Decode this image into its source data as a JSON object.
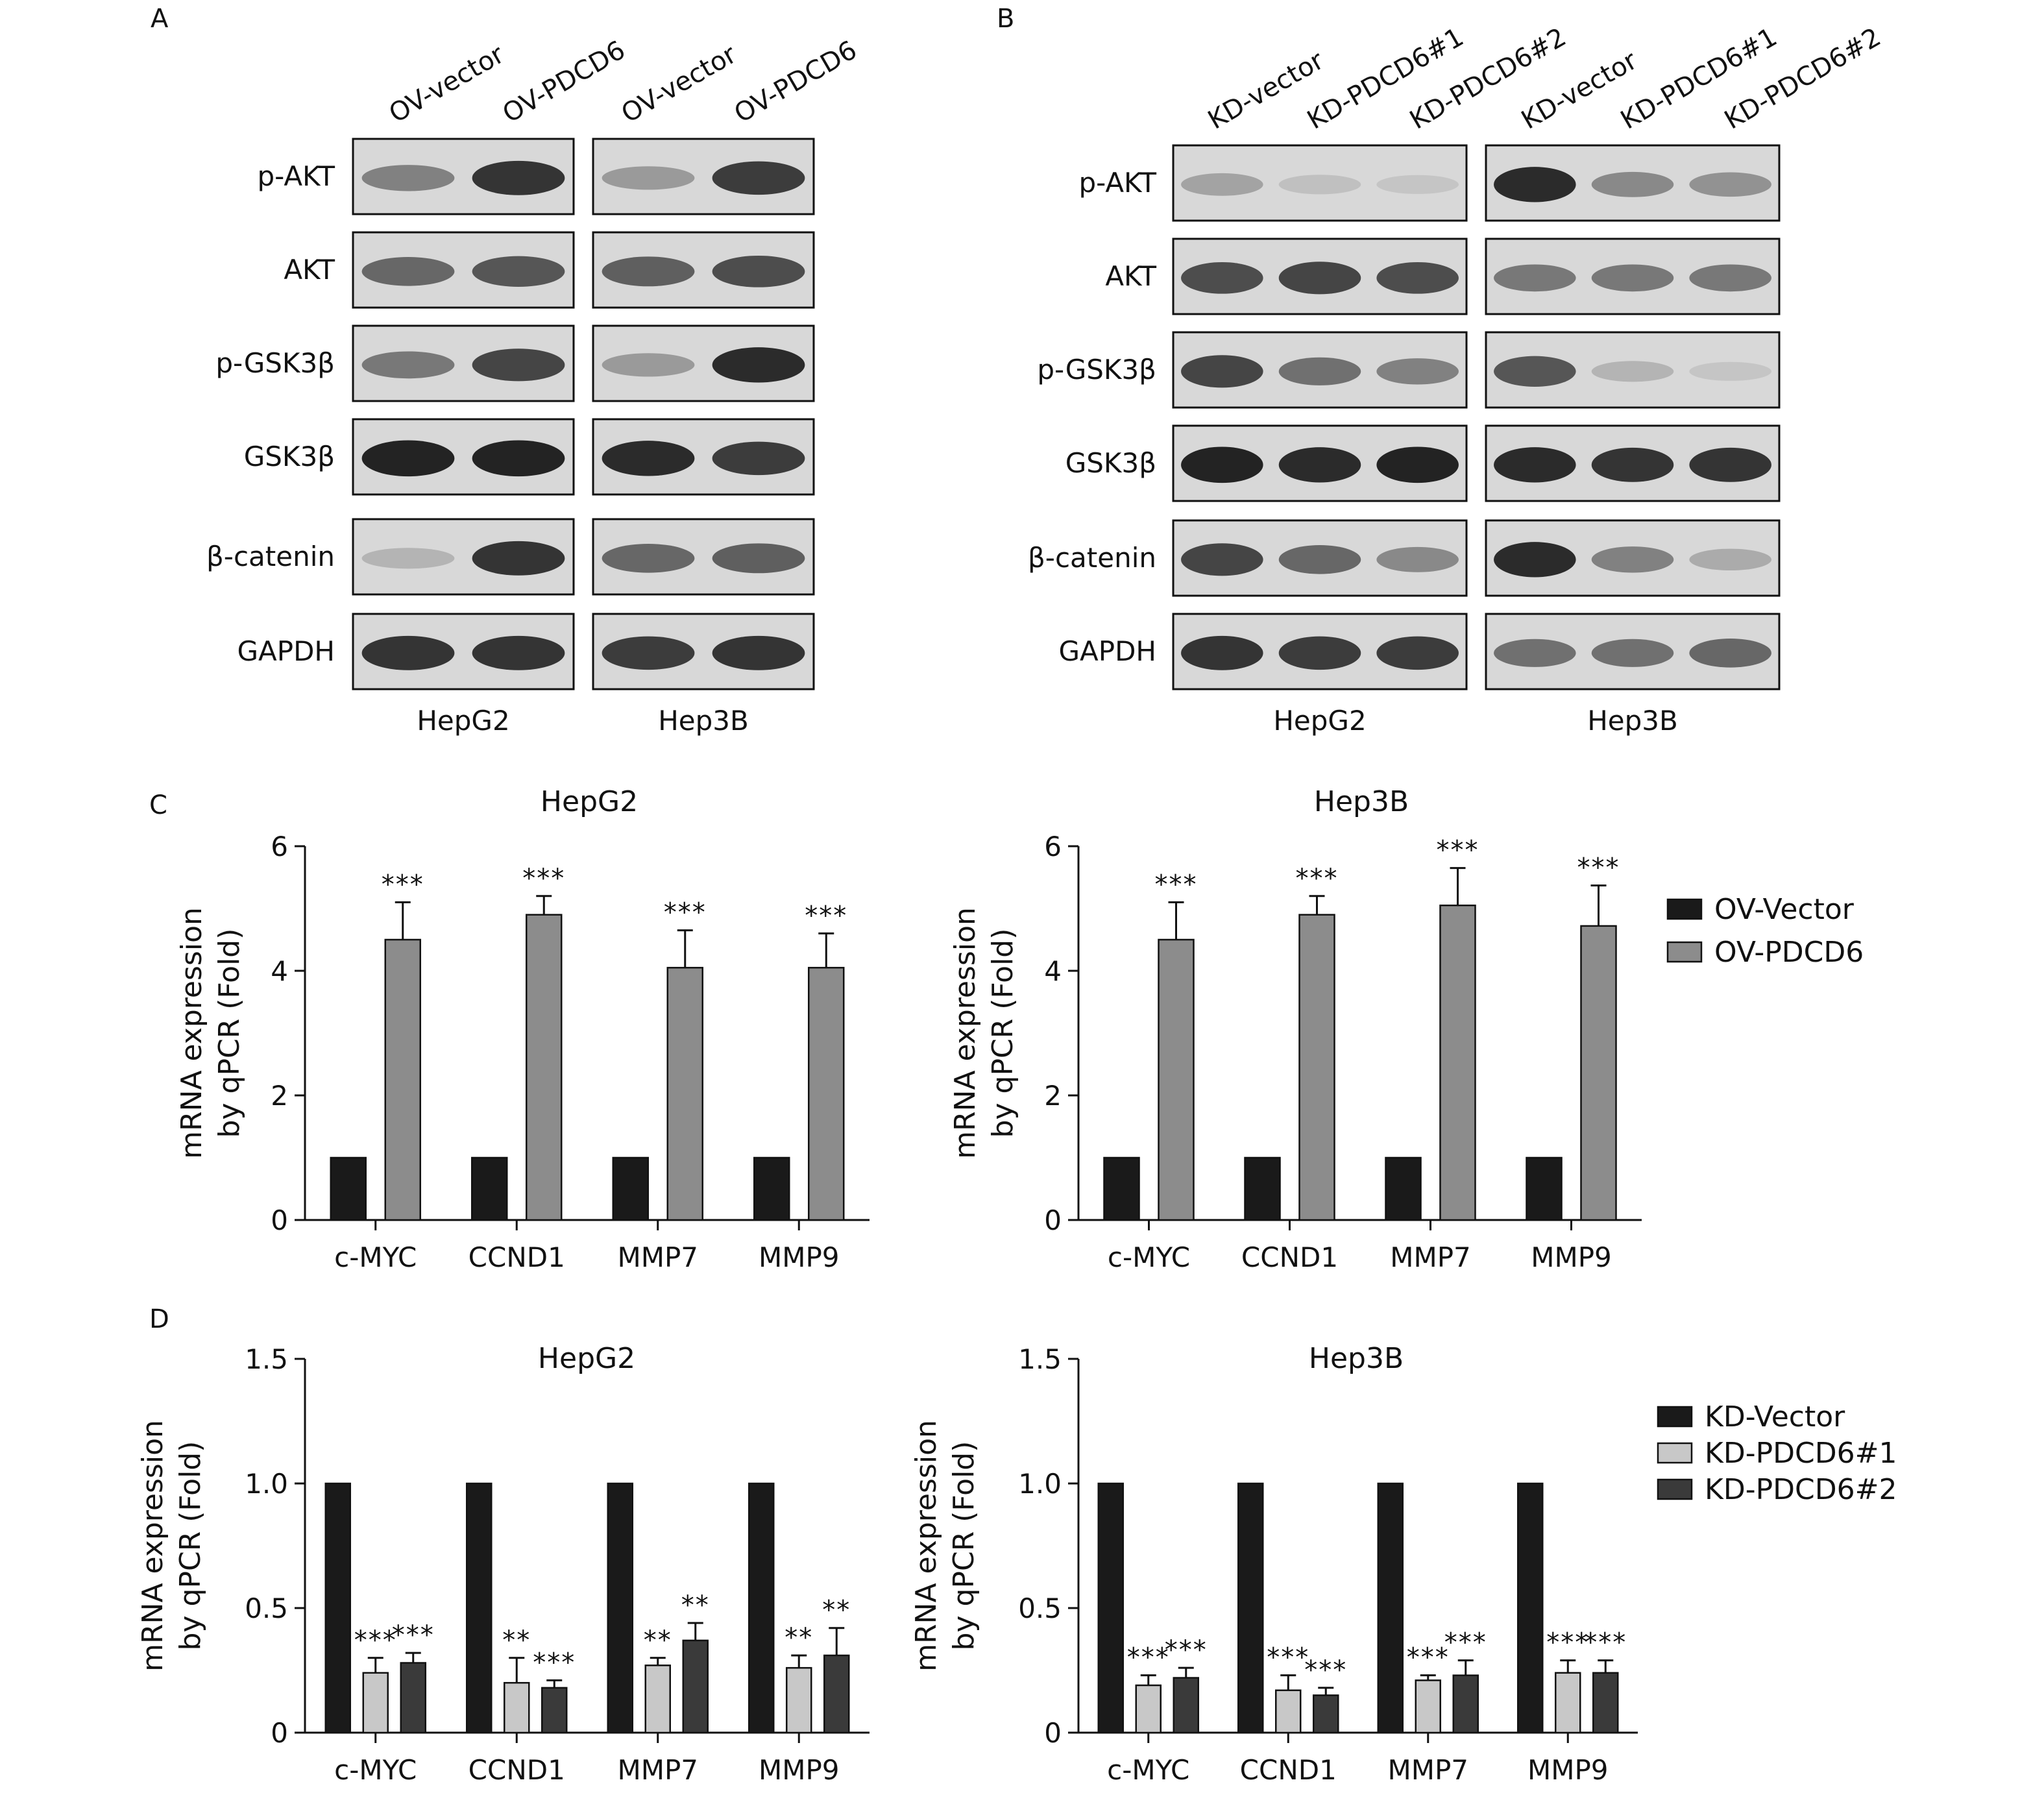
{
  "panels": {
    "a": "A",
    "b": "B",
    "c": "C",
    "d": "D"
  },
  "blot_a": {
    "lanes": [
      "OV-vector",
      "OV-PDCD6",
      "OV-vector",
      "OV-PDCD6"
    ],
    "proteins": [
      "p-AKT",
      "AKT",
      "p-GSK3β",
      "GSK3β",
      "β-catenin",
      "GAPDH"
    ],
    "cell_lines": [
      "HepG2",
      "Hep3B"
    ],
    "intensity": {
      "HepG2": [
        [
          0.45,
          0.9
        ],
        [
          0.6,
          0.7
        ],
        [
          0.5,
          0.8
        ],
        [
          1.0,
          1.0
        ],
        [
          0.15,
          0.9
        ],
        [
          0.9,
          0.9
        ]
      ],
      "Hep3B": [
        [
          0.3,
          0.85
        ],
        [
          0.65,
          0.75
        ],
        [
          0.3,
          0.95
        ],
        [
          0.95,
          0.85
        ],
        [
          0.6,
          0.65
        ],
        [
          0.85,
          0.9
        ]
      ]
    }
  },
  "blot_b": {
    "lanes": [
      "KD-vector",
      "KD-PDCD6#1",
      "KD-PDCD6#2",
      "KD-vector",
      "KD-PDCD6#1",
      "KD-PDCD6#2"
    ],
    "proteins": [
      "p-AKT",
      "AKT",
      "p-GSK3β",
      "GSK3β",
      "β-catenin",
      "GAPDH"
    ],
    "cell_lines": [
      "HepG2",
      "Hep3B"
    ],
    "intensity": {
      "HepG2": [
        [
          0.25,
          0.08,
          0.05
        ],
        [
          0.75,
          0.8,
          0.75
        ],
        [
          0.8,
          0.55,
          0.45
        ],
        [
          1.0,
          0.95,
          1.0
        ],
        [
          0.8,
          0.6,
          0.4
        ],
        [
          0.9,
          0.85,
          0.85
        ]
      ],
      "Hep3B": [
        [
          0.95,
          0.4,
          0.35
        ],
        [
          0.5,
          0.5,
          0.5
        ],
        [
          0.7,
          0.15,
          0.05
        ],
        [
          0.95,
          0.9,
          0.9
        ],
        [
          0.95,
          0.45,
          0.2
        ],
        [
          0.55,
          0.55,
          0.6
        ]
      ]
    }
  },
  "colors": {
    "dark_bar": "#1a1a1a",
    "gray_bar": "#8c8c8c",
    "light_bar": "#c8c8c8",
    "mid_dark_bar": "#3a3a3a"
  },
  "chart_data": [
    {
      "type": "bar",
      "panel": "C",
      "title": "HepG2",
      "ylabel": [
        "mRNA expression",
        "by qPCR (Fold)"
      ],
      "categories": [
        "c-MYC",
        "CCND1",
        "MMP7",
        "MMP9"
      ],
      "ylim": [
        0,
        6
      ],
      "yticks": [
        "0",
        "2",
        "4",
        "6"
      ],
      "series": [
        {
          "name": "OV-Vector",
          "values": [
            1.0,
            1.0,
            1.0,
            1.0
          ],
          "errors": [
            0,
            0,
            0,
            0
          ],
          "sig": [
            "",
            "",
            "",
            ""
          ]
        },
        {
          "name": "OV-PDCD6",
          "values": [
            4.5,
            4.9,
            4.05,
            4.05
          ],
          "errors": [
            0.6,
            0.3,
            0.6,
            0.55
          ],
          "sig": [
            "***",
            "***",
            "***",
            "***"
          ]
        }
      ]
    },
    {
      "type": "bar",
      "panel": "C",
      "title": "Hep3B",
      "ylabel": [
        "mRNA expression",
        "by qPCR (Fold)"
      ],
      "categories": [
        "c-MYC",
        "CCND1",
        "MMP7",
        "MMP9"
      ],
      "ylim": [
        0,
        6
      ],
      "yticks": [
        "0",
        "2",
        "4",
        "6"
      ],
      "legend": "right",
      "series": [
        {
          "name": "OV-Vector",
          "values": [
            1.0,
            1.0,
            1.0,
            1.0
          ],
          "errors": [
            0,
            0,
            0,
            0
          ],
          "sig": [
            "",
            "",
            "",
            ""
          ]
        },
        {
          "name": "OV-PDCD6",
          "values": [
            4.5,
            4.9,
            5.05,
            4.72
          ],
          "errors": [
            0.6,
            0.3,
            0.6,
            0.65
          ],
          "sig": [
            "***",
            "***",
            "***",
            "***"
          ]
        }
      ]
    },
    {
      "type": "bar",
      "panel": "D",
      "title": "HepG2",
      "ylabel": [
        "mRNA expression",
        "by qPCR (Fold)"
      ],
      "categories": [
        "c-MYC",
        "CCND1",
        "MMP7",
        "MMP9"
      ],
      "ylim": [
        0,
        1.5
      ],
      "yticks": [
        "0",
        "0.5",
        "1.0",
        "1.5"
      ],
      "series": [
        {
          "name": "KD-Vector",
          "values": [
            1.0,
            1.0,
            1.0,
            1.0
          ],
          "errors": [
            0,
            0,
            0,
            0
          ],
          "sig": [
            "",
            "",
            "",
            ""
          ]
        },
        {
          "name": "KD-PDCD6#1",
          "values": [
            0.24,
            0.2,
            0.27,
            0.26
          ],
          "errors": [
            0.06,
            0.1,
            0.03,
            0.05
          ],
          "sig": [
            "***",
            "**",
            "**",
            "**"
          ]
        },
        {
          "name": "KD-PDCD6#2",
          "values": [
            0.28,
            0.18,
            0.37,
            0.31
          ],
          "errors": [
            0.04,
            0.03,
            0.07,
            0.11
          ],
          "sig": [
            "***",
            "***",
            "**",
            "**"
          ]
        }
      ]
    },
    {
      "type": "bar",
      "panel": "D",
      "title": "Hep3B",
      "ylabel": [
        "mRNA expression",
        "by qPCR (Fold)"
      ],
      "categories": [
        "c-MYC",
        "CCND1",
        "MMP7",
        "MMP9"
      ],
      "ylim": [
        0,
        1.5
      ],
      "yticks": [
        "0",
        "0.5",
        "1.0",
        "1.5"
      ],
      "legend": "right",
      "series": [
        {
          "name": "KD-Vector",
          "values": [
            1.0,
            1.0,
            1.0,
            1.0
          ],
          "errors": [
            0,
            0,
            0,
            0
          ],
          "sig": [
            "",
            "",
            "",
            ""
          ]
        },
        {
          "name": "KD-PDCD6#1",
          "values": [
            0.19,
            0.17,
            0.21,
            0.24
          ],
          "errors": [
            0.04,
            0.06,
            0.02,
            0.05
          ],
          "sig": [
            "***",
            "***",
            "***",
            "***"
          ]
        },
        {
          "name": "KD-PDCD6#2",
          "values": [
            0.22,
            0.15,
            0.23,
            0.24
          ],
          "errors": [
            0.04,
            0.03,
            0.06,
            0.05
          ],
          "sig": [
            "***",
            "***",
            "***",
            "***"
          ]
        }
      ]
    }
  ]
}
